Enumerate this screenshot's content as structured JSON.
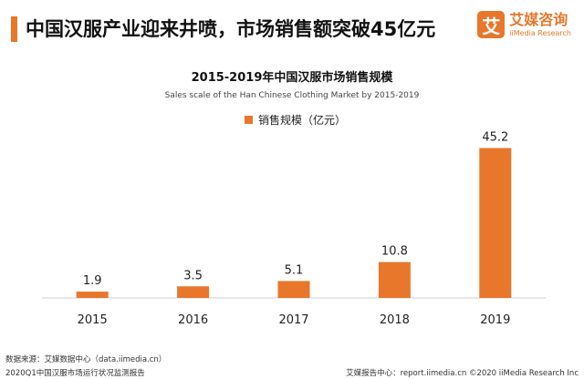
{
  "header": {
    "title": "中国汉服产业迎来井喷，市场销售额突破45亿元",
    "logo_mark": "艾",
    "logo_cn": "艾媒咨询",
    "logo_en": "iiMedia Research"
  },
  "chart_data": {
    "type": "bar",
    "title": "2015-2019年中国汉服市场销售规模",
    "subtitle": "Sales scale of the Han Chinese Clothing Market by 2015-2019",
    "categories": [
      "2015",
      "2016",
      "2017",
      "2018",
      "2019"
    ],
    "series": [
      {
        "name": "销售规模（亿元）",
        "values": [
          1.9,
          3.5,
          5.1,
          10.8,
          45.2
        ],
        "labels": [
          "1.9",
          "3.5",
          "5.1",
          "10.8",
          "45.2"
        ]
      }
    ],
    "ylim": [
      0,
      50
    ],
    "grid": false,
    "legend_position": "top-center",
    "bar_color": "#e8772b"
  },
  "footer": {
    "source": "数据来源：艾媒数据中心（data.iimedia.cn）",
    "report": "2020Q1中国汉服市场运行状况监测报告",
    "credit": "艾媒报告中心：report.iimedia.cn ©2020 iiMedia Research Inc"
  }
}
